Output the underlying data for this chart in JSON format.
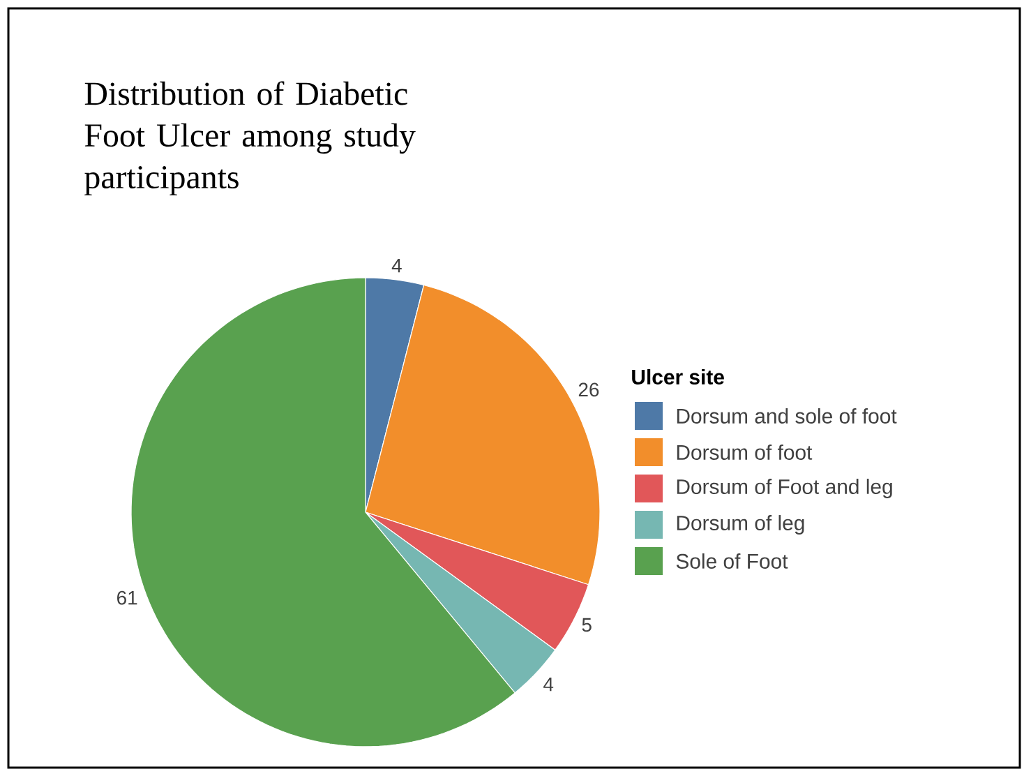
{
  "chart_data": {
    "type": "pie",
    "title": "Distribution of Diabetic Foot Ulcer among study participants",
    "legend_title": "Ulcer site",
    "categories": [
      "Dorsum and sole of foot",
      "Dorsum of foot",
      "Dorsum of Foot and leg",
      "Dorsum of leg",
      "Sole of Foot"
    ],
    "values": [
      4,
      26,
      5,
      4,
      61
    ],
    "colors": [
      "#4e79a7",
      "#f28e2b",
      "#e15759",
      "#76b7b2",
      "#59a14f"
    ],
    "data_labels": true,
    "legend": "right"
  }
}
